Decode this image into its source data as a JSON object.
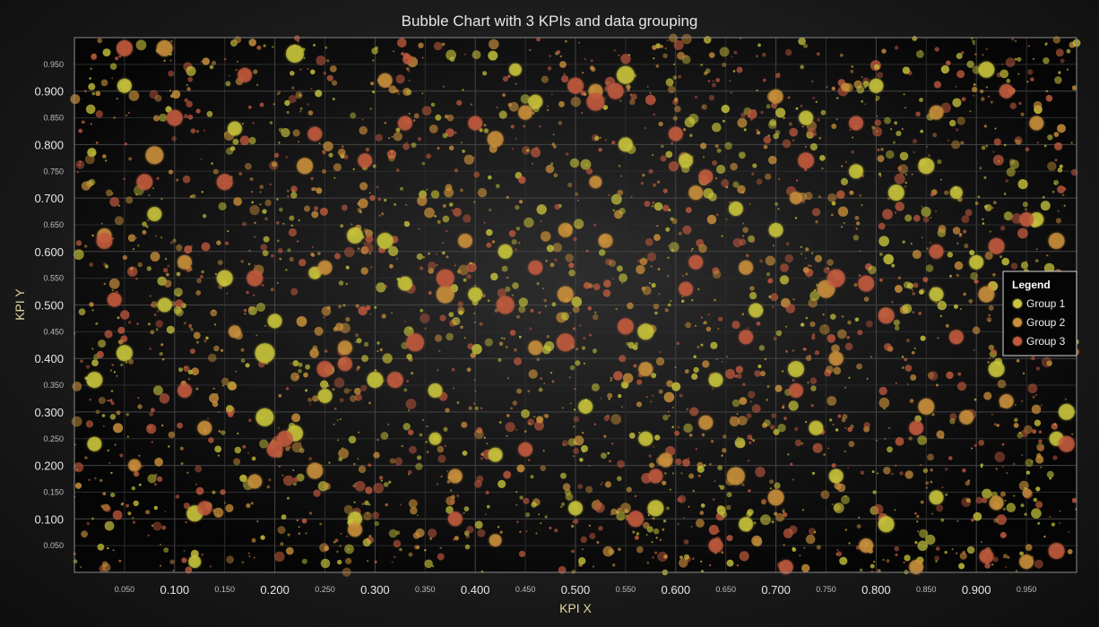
{
  "chart_data": {
    "type": "scatter",
    "title": "Bubble Chart with 3 KPIs and data grouping",
    "xlabel": "KPI X",
    "ylabel": "KPI Y",
    "xlim": [
      0,
      1
    ],
    "ylim": [
      0,
      1
    ],
    "x_major_ticks": [
      "0.100",
      "0.200",
      "0.300",
      "0.400",
      "0.500",
      "0.600",
      "0.700",
      "0.800",
      "0.900"
    ],
    "x_minor_ticks": [
      "0.050",
      "0.150",
      "0.250",
      "0.350",
      "0.450",
      "0.550",
      "0.650",
      "0.750",
      "0.850",
      "0.950"
    ],
    "y_major_ticks": [
      "0.100",
      "0.200",
      "0.300",
      "0.400",
      "0.500",
      "0.600",
      "0.700",
      "0.800",
      "0.900"
    ],
    "y_minor_ticks": [
      "0.050",
      "0.150",
      "0.250",
      "0.350",
      "0.450",
      "0.550",
      "0.650",
      "0.750",
      "0.850",
      "0.950"
    ],
    "grid": true,
    "legend": {
      "title": "Legend",
      "position": "right"
    },
    "series": [
      {
        "name": "Group 1",
        "color": "#c8c43c",
        "points": [
          [
            0.05,
            0.91,
            8
          ],
          [
            0.16,
            0.83,
            8
          ],
          [
            0.22,
            0.97,
            10
          ],
          [
            0.15,
            0.55,
            9
          ],
          [
            0.19,
            0.41,
            11
          ],
          [
            0.2,
            0.47,
            8
          ],
          [
            0.19,
            0.29,
            10
          ],
          [
            0.02,
            0.36,
            9
          ],
          [
            0.09,
            0.5,
            8
          ],
          [
            0.12,
            0.11,
            9
          ],
          [
            0.28,
            0.63,
            9
          ],
          [
            0.31,
            0.62,
            9
          ],
          [
            0.3,
            0.36,
            9
          ],
          [
            0.36,
            0.34,
            8
          ],
          [
            0.43,
            0.6,
            8
          ],
          [
            0.51,
            0.31,
            8
          ],
          [
            0.55,
            0.93,
            10
          ],
          [
            0.57,
            0.45,
            9
          ],
          [
            0.61,
            0.77,
            8
          ],
          [
            0.66,
            0.68,
            8
          ],
          [
            0.68,
            0.49,
            8
          ],
          [
            0.72,
            0.38,
            9
          ],
          [
            0.73,
            0.85,
            8
          ],
          [
            0.78,
            0.75,
            8
          ],
          [
            0.8,
            0.91,
            8
          ],
          [
            0.82,
            0.71,
            9
          ],
          [
            0.85,
            0.76,
            9
          ],
          [
            0.86,
            0.52,
            8
          ],
          [
            0.91,
            0.94,
            9
          ],
          [
            0.92,
            0.38,
            9
          ],
          [
            0.99,
            0.3,
            9
          ],
          [
            0.98,
            0.25,
            8
          ],
          [
            0.86,
            0.14,
            8
          ],
          [
            0.81,
            0.09,
            9
          ],
          [
            0.67,
            0.09,
            8
          ],
          [
            0.58,
            0.12,
            9
          ],
          [
            0.5,
            0.12,
            8
          ],
          [
            0.42,
            0.22,
            8
          ],
          [
            0.28,
            0.1,
            8
          ],
          [
            0.25,
            0.33,
            8
          ],
          [
            0.22,
            0.26,
            9
          ],
          [
            0.05,
            0.41,
            9
          ],
          [
            0.08,
            0.67,
            8
          ],
          [
            0.4,
            0.52,
            8
          ],
          [
            0.46,
            0.88,
            8
          ],
          [
            0.57,
            0.25,
            8
          ],
          [
            0.7,
            0.64,
            8
          ],
          [
            0.76,
            0.18,
            8
          ],
          [
            0.9,
            0.58,
            8
          ],
          [
            0.96,
            0.66,
            8
          ],
          [
            0.33,
            0.54,
            8
          ],
          [
            0.64,
            0.36,
            8
          ],
          [
            0.36,
            0.25,
            7
          ],
          [
            0.12,
            0.02,
            7
          ],
          [
            0.44,
            0.94,
            7
          ],
          [
            0.74,
            0.27,
            8
          ],
          [
            0.88,
            0.71,
            7
          ],
          [
            0.02,
            0.24,
            8
          ],
          [
            0.55,
            0.8,
            8
          ],
          [
            0.24,
            0.56,
            7
          ]
        ]
      },
      {
        "name": "Group 2",
        "color": "#c98f3a",
        "points": [
          [
            0.08,
            0.78,
            10
          ],
          [
            0.09,
            0.98,
            9
          ],
          [
            0.23,
            0.76,
            9
          ],
          [
            0.25,
            0.57,
            8
          ],
          [
            0.37,
            0.52,
            10
          ],
          [
            0.42,
            0.81,
            9
          ],
          [
            0.45,
            0.86,
            8
          ],
          [
            0.49,
            0.64,
            8
          ],
          [
            0.52,
            0.9,
            8
          ],
          [
            0.53,
            0.62,
            8
          ],
          [
            0.62,
            0.71,
            8
          ],
          [
            0.67,
            0.57,
            8
          ],
          [
            0.7,
            0.89,
            8
          ],
          [
            0.75,
            0.53,
            10
          ],
          [
            0.85,
            0.31,
            9
          ],
          [
            0.89,
            0.29,
            8
          ],
          [
            0.91,
            0.52,
            9
          ],
          [
            0.96,
            0.84,
            8
          ],
          [
            0.93,
            0.32,
            8
          ],
          [
            0.98,
            0.62,
            9
          ],
          [
            0.66,
            0.18,
            10
          ],
          [
            0.59,
            0.21,
            8
          ],
          [
            0.49,
            0.52,
            9
          ],
          [
            0.46,
            0.42,
            8
          ],
          [
            0.39,
            0.62,
            8
          ],
          [
            0.27,
            0.42,
            8
          ],
          [
            0.24,
            0.19,
            9
          ],
          [
            0.18,
            0.17,
            8
          ],
          [
            0.11,
            0.58,
            8
          ],
          [
            0.13,
            0.27,
            8
          ],
          [
            0.03,
            0.63,
            8
          ],
          [
            0.28,
            0.08,
            8
          ],
          [
            0.7,
            0.14,
            9
          ],
          [
            0.79,
            0.05,
            8
          ],
          [
            0.84,
            0.01,
            8
          ],
          [
            0.95,
            0.02,
            8
          ],
          [
            0.38,
            0.18,
            8
          ],
          [
            0.57,
            0.38,
            8
          ],
          [
            0.76,
            0.4,
            8
          ],
          [
            0.86,
            0.86,
            8
          ],
          [
            0.31,
            0.92,
            8
          ],
          [
            0.16,
            0.45,
            7
          ],
          [
            0.52,
            0.73,
            7
          ],
          [
            0.63,
            0.28,
            8
          ],
          [
            0.92,
            0.13,
            8
          ],
          [
            0.06,
            0.2,
            7
          ],
          [
            0.42,
            0.06,
            7
          ],
          [
            0.72,
            0.7,
            7
          ]
        ]
      },
      {
        "name": "Group 3",
        "color": "#c05a3e",
        "points": [
          [
            0.05,
            0.98,
            9
          ],
          [
            0.1,
            0.85,
            9
          ],
          [
            0.15,
            0.73,
            9
          ],
          [
            0.21,
            0.25,
            9
          ],
          [
            0.2,
            0.23,
            9
          ],
          [
            0.24,
            0.82,
            8
          ],
          [
            0.25,
            0.38,
            9
          ],
          [
            0.33,
            0.84,
            8
          ],
          [
            0.34,
            0.43,
            10
          ],
          [
            0.37,
            0.55,
            10
          ],
          [
            0.4,
            0.84,
            8
          ],
          [
            0.43,
            0.5,
            10
          ],
          [
            0.46,
            0.57,
            8
          ],
          [
            0.5,
            0.91,
            9
          ],
          [
            0.52,
            0.88,
            10
          ],
          [
            0.54,
            0.9,
            9
          ],
          [
            0.55,
            0.46,
            9
          ],
          [
            0.58,
            0.18,
            8
          ],
          [
            0.61,
            0.53,
            8
          ],
          [
            0.63,
            0.74,
            8
          ],
          [
            0.72,
            0.34,
            8
          ],
          [
            0.73,
            0.77,
            9
          ],
          [
            0.76,
            0.55,
            10
          ],
          [
            0.79,
            0.54,
            9
          ],
          [
            0.81,
            0.48,
            9
          ],
          [
            0.84,
            0.27,
            8
          ],
          [
            0.88,
            0.44,
            8
          ],
          [
            0.92,
            0.61,
            9
          ],
          [
            0.95,
            0.66,
            8
          ],
          [
            0.99,
            0.24,
            9
          ],
          [
            0.98,
            0.04,
            9
          ],
          [
            0.91,
            0.03,
            8
          ],
          [
            0.71,
            0.01,
            8
          ],
          [
            0.64,
            0.05,
            8
          ],
          [
            0.56,
            0.1,
            9
          ],
          [
            0.49,
            0.43,
            10
          ],
          [
            0.38,
            0.1,
            8
          ],
          [
            0.32,
            0.36,
            9
          ],
          [
            0.27,
            0.39,
            8
          ],
          [
            0.18,
            0.55,
            9
          ],
          [
            0.13,
            0.12,
            8
          ],
          [
            0.11,
            0.34,
            8
          ],
          [
            0.03,
            0.62,
            9
          ],
          [
            0.07,
            0.73,
            9
          ],
          [
            0.04,
            0.51,
            8
          ],
          [
            0.17,
            0.93,
            8
          ],
          [
            0.6,
            0.82,
            8
          ],
          [
            0.67,
            0.44,
            8
          ],
          [
            0.78,
            0.84,
            8
          ],
          [
            0.86,
            0.6,
            8
          ],
          [
            0.93,
            0.9,
            8
          ],
          [
            0.29,
            0.77,
            8
          ],
          [
            0.62,
            0.58,
            8
          ],
          [
            0.45,
            0.23,
            8
          ]
        ]
      }
    ],
    "background_points": {
      "count": 2600,
      "min_radius": 1,
      "max_radius": 6,
      "seed": 11
    }
  }
}
